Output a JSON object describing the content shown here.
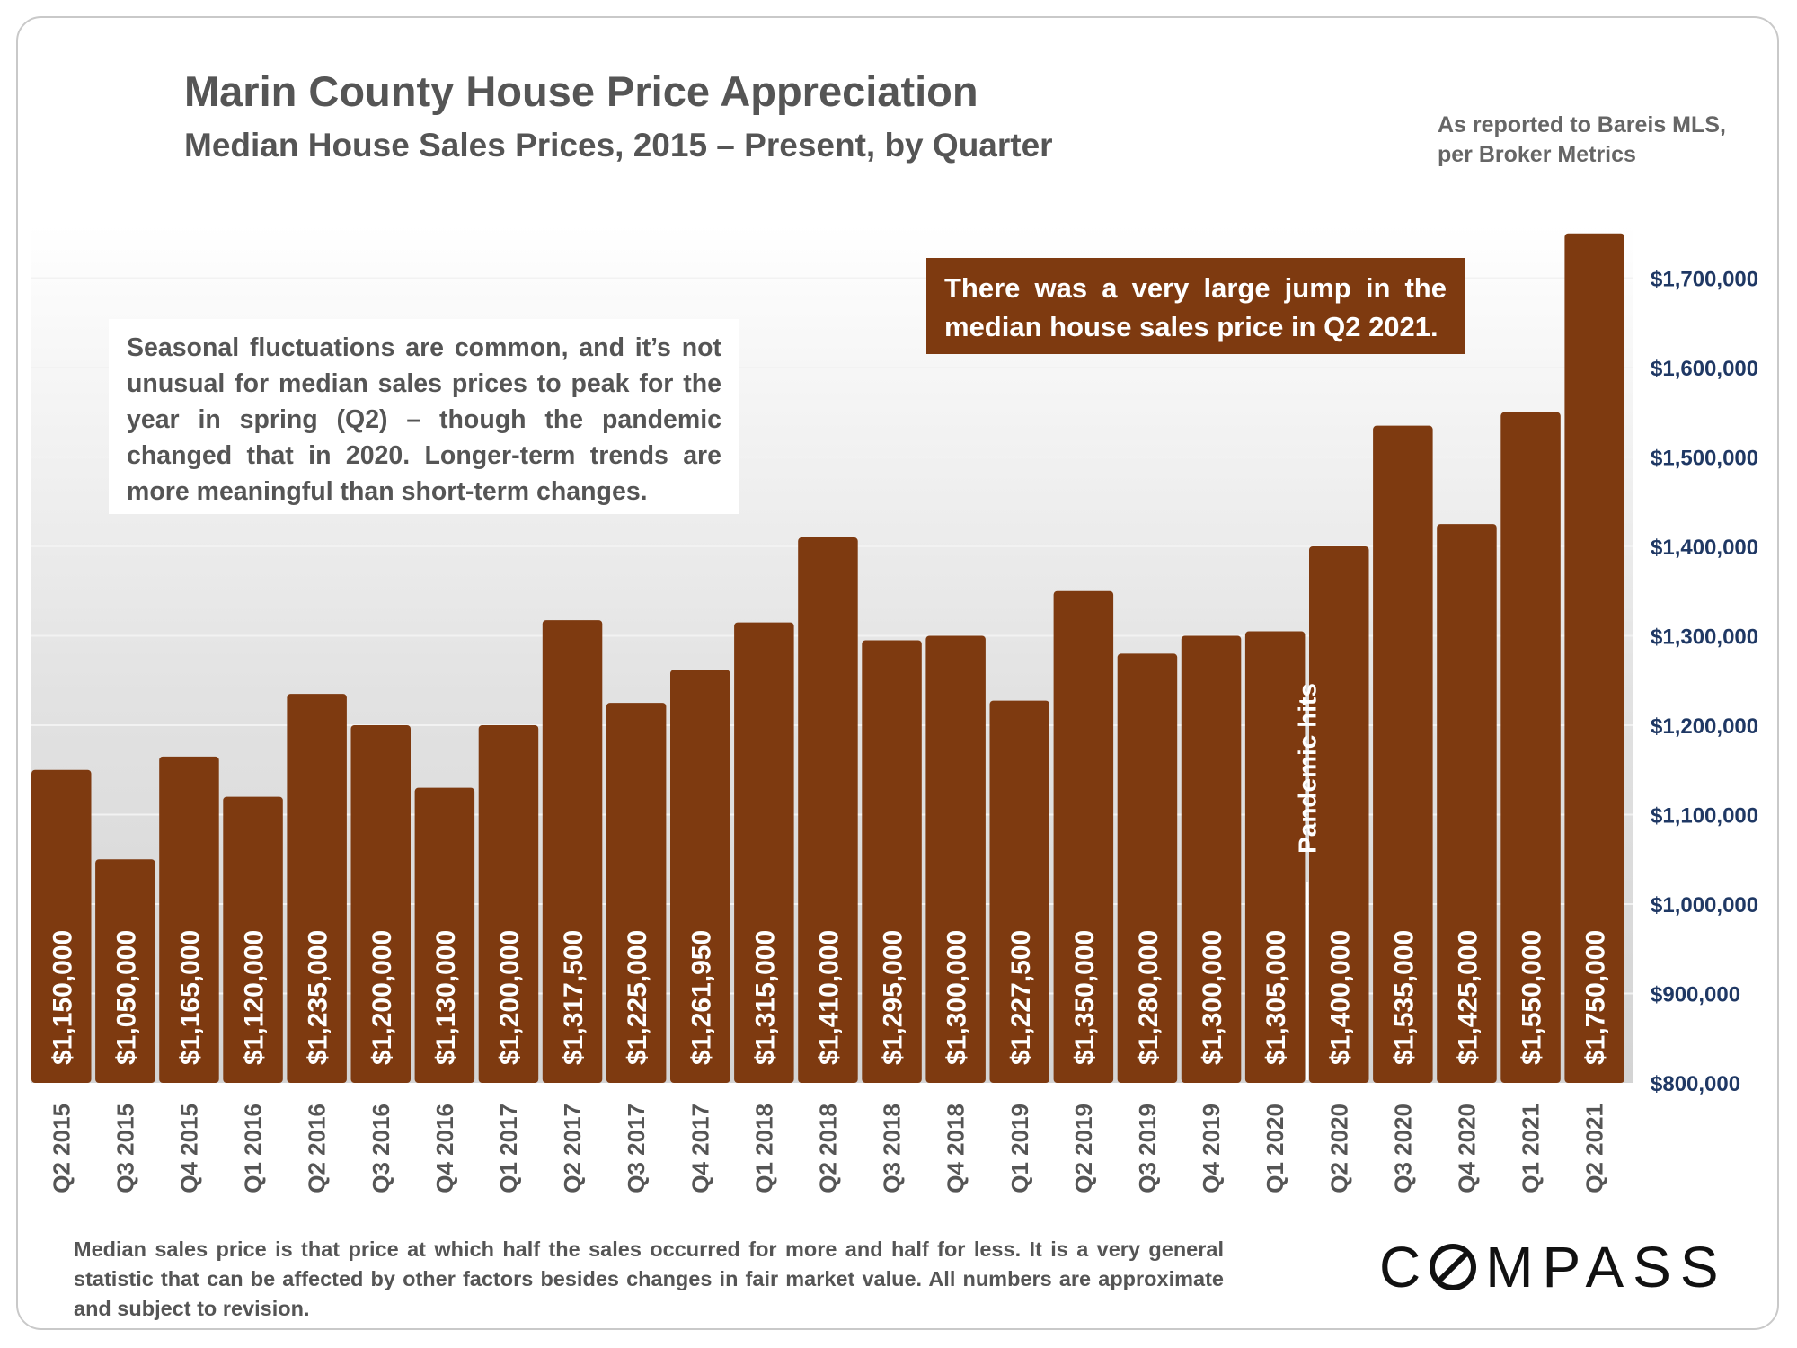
{
  "header": {
    "title": "Marin County House Price Appreciation",
    "subtitle": "Median House Sales Prices, 2015 – Present, by Quarter",
    "source": "As reported to Bareis MLS, per Broker Metrics"
  },
  "annotations": {
    "note": "Seasonal fluctuations are common, and it’s not unusual for median sales prices to peak for the year in spring (Q2) – though the pandemic changed that in 2020. Longer-term trends are more meaningful than short-term changes.",
    "callout": "There was a very large jump in the median house sales price in Q2 2021.",
    "pandemic": "Pandemic hits"
  },
  "footer": {
    "footnote": "Median sales price is that price at which half the sales occurred for more and half for less. It is a very general statistic that can be affected by other factors besides changes in fair market value. All numbers are approximate and subject to revision.",
    "logo_prefix": "C",
    "logo_suffix": "MPASS"
  },
  "colors": {
    "bar": "#7e3a10",
    "axis_text": "#1f3864",
    "category_text": "#555555"
  },
  "chart_data": {
    "type": "bar",
    "title": "Marin County House Price Appreciation",
    "subtitle": "Median House Sales Prices, 2015 – Present, by Quarter",
    "categories": [
      "Q2 2015",
      "Q3 2015",
      "Q4 2015",
      "Q1 2016",
      "Q2 2016",
      "Q3 2016",
      "Q4 2016",
      "Q1 2017",
      "Q2 2017",
      "Q3 2017",
      "Q4 2017",
      "Q1 2018",
      "Q2 2018",
      "Q3 2018",
      "Q4 2018",
      "Q1 2019",
      "Q2 2019",
      "Q3 2019",
      "Q4 2019",
      "Q1 2020",
      "Q2 2020",
      "Q3 2020",
      "Q4 2020",
      "Q1 2021",
      "Q2 2021"
    ],
    "values": [
      1150000,
      1050000,
      1165000,
      1120000,
      1235000,
      1200000,
      1130000,
      1200000,
      1317500,
      1225000,
      1261950,
      1315000,
      1410000,
      1295000,
      1300000,
      1227500,
      1350000,
      1280000,
      1300000,
      1305000,
      1400000,
      1535000,
      1425000,
      1550000,
      1750000
    ],
    "value_labels": [
      "$1,150,000",
      "$1,050,000",
      "$1,165,000",
      "$1,120,000",
      "$1,235,000",
      "$1,200,000",
      "$1,130,000",
      "$1,200,000",
      "$1,317,500",
      "$1,225,000",
      "$1,261,950",
      "$1,315,000",
      "$1,410,000",
      "$1,295,000",
      "$1,300,000",
      "$1,227,500",
      "$1,350,000",
      "$1,280,000",
      "$1,300,000",
      "$1,305,000",
      "$1,400,000",
      "$1,535,000",
      "$1,425,000",
      "$1,550,000",
      "$1,750,000"
    ],
    "xlabel": "",
    "ylabel": "",
    "ylim": [
      800000,
      1750000
    ],
    "y_ticks": [
      800000,
      900000,
      1000000,
      1100000,
      1200000,
      1300000,
      1400000,
      1500000,
      1600000,
      1700000
    ],
    "y_tick_labels": [
      "$800,000",
      "$900,000",
      "$1,000,000",
      "$1,100,000",
      "$1,200,000",
      "$1,300,000",
      "$1,400,000",
      "$1,500,000",
      "$1,600,000",
      "$1,700,000"
    ],
    "y_axis_side": "right",
    "grid": true,
    "legend": "none",
    "pandemic_marker_category": "Q1 2020"
  }
}
